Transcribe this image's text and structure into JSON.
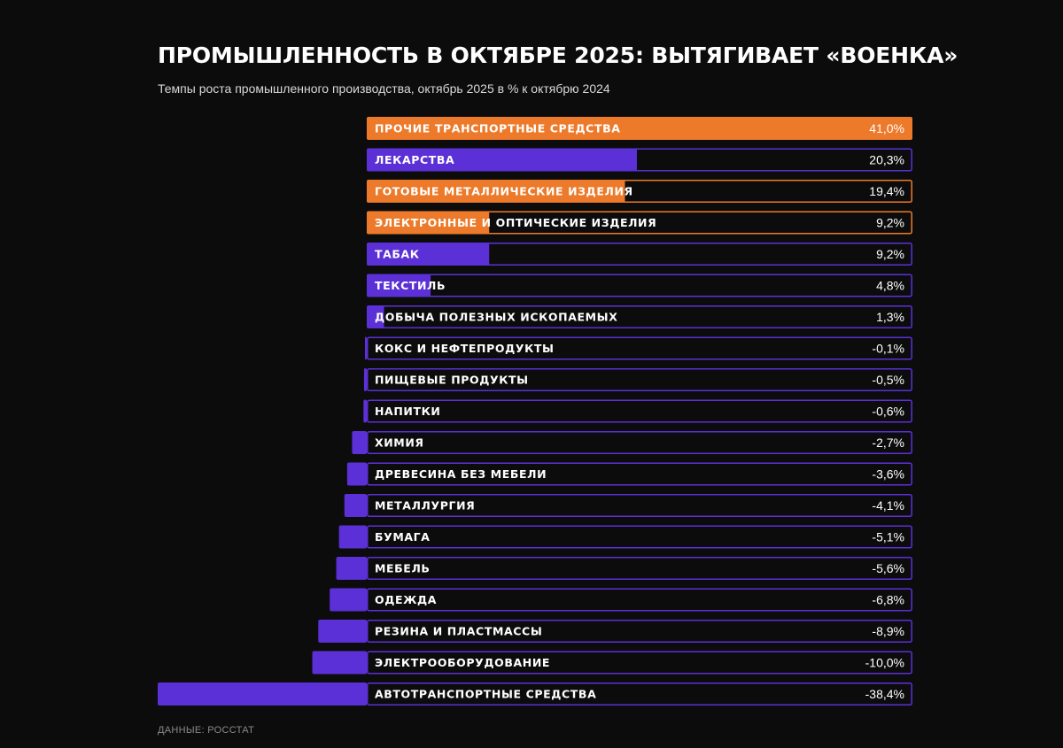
{
  "header": {
    "title": "ПРОМЫШЛЕННОСТЬ В ОКТЯБРЕ 2025: ВЫТЯГИВАЕТ «ВОЕНКА»",
    "subtitle": "Темпы роста промышленного производства, октябрь 2025 в % к октябрю 2024"
  },
  "footer": {
    "source": "ДАННЫЕ: РОССТАТ"
  },
  "colors": {
    "background": "#0c0c0c",
    "highlight": "#ec7a2a",
    "default": "#5b30d6",
    "text": "#ffffff"
  },
  "chart_data": {
    "type": "bar",
    "orientation": "horizontal",
    "title": "ПРОМЫШЛЕННОСТЬ В ОКТЯБРЕ 2025: ВЫТЯГИВАЕТ «ВОЕНКА»",
    "subtitle": "Темпы роста промышленного производства, октябрь 2025 в % к октябрю 2024",
    "unit": "%",
    "xlim": [
      -38.4,
      41.0
    ],
    "categories": [
      "ПРОЧИЕ ТРАНСПОРТНЫЕ СРЕДСТВА",
      "ЛЕКАРСТВА",
      "ГОТОВЫЕ МЕТАЛЛИЧЕСКИЕ ИЗДЕЛИЯ",
      "ЭЛЕКТРОННЫЕ И ОПТИЧЕСКИЕ ИЗДЕЛИЯ",
      "ТАБАК",
      "ТЕКСТИЛЬ",
      "ДОБЫЧА ПОЛЕЗНЫХ ИСКОПАЕМЫХ",
      "КОКС И НЕФТЕПРОДУКТЫ",
      "ПИЩЕВЫЕ ПРОДУКТЫ",
      "НАПИТКИ",
      "ХИМИЯ",
      "ДРЕВЕСИНА БЕЗ МЕБЕЛИ",
      "МЕТАЛЛУРГИЯ",
      "БУМАГА",
      "МЕБЕЛЬ",
      "ОДЕЖДА",
      "РЕЗИНА И ПЛАСТМАССЫ",
      "ЭЛЕКТРООБОРУДОВАНИЕ",
      "АВТОТРАНСПОРТНЫЕ СРЕДСТВА"
    ],
    "values": [
      41.0,
      20.3,
      19.4,
      9.2,
      9.2,
      4.8,
      1.3,
      -0.1,
      -0.5,
      -0.6,
      -2.7,
      -3.6,
      -4.1,
      -5.1,
      -5.6,
      -6.8,
      -8.9,
      -10.0,
      -38.4
    ],
    "value_labels": [
      "41,0%",
      "20,3%",
      "19,4%",
      "9,2%",
      "9,2%",
      "4,8%",
      "1,3%",
      "-0,1%",
      "-0,5%",
      "-0,6%",
      "-2,7%",
      "-3,6%",
      "-4,1%",
      "-5,1%",
      "-5,6%",
      "-6,8%",
      "-8,9%",
      "-10,0%",
      "-38,4%"
    ],
    "highlighted": [
      true,
      false,
      true,
      true,
      false,
      false,
      false,
      false,
      false,
      false,
      false,
      false,
      false,
      false,
      false,
      false,
      false,
      false,
      false
    ]
  }
}
